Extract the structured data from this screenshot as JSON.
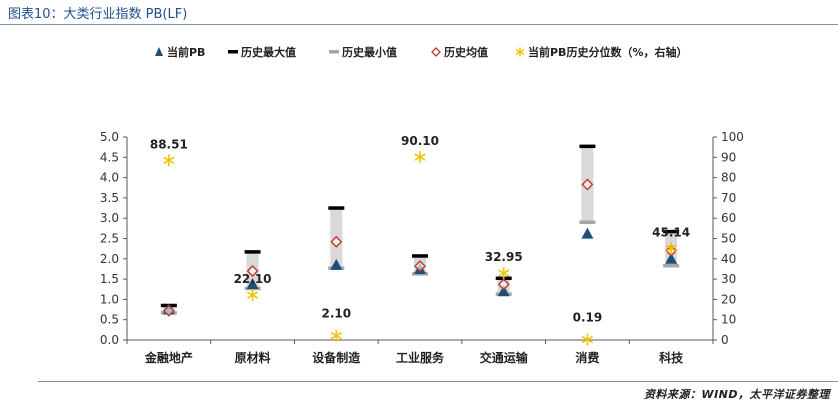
{
  "header": {
    "title": "图表10：大类行业指数 PB(LF)"
  },
  "footer": {
    "source": "资料来源：WIND，太平洋证券整理"
  },
  "chart_data": {
    "type": "range-marker",
    "categories": [
      "金融地产",
      "原材料",
      "设备制造",
      "工业服务",
      "交通运输",
      "消费",
      "科技"
    ],
    "legend": [
      "当前PB",
      "历史最大值",
      "历史最小值",
      "历史均值",
      "当前PB历史分位数（%，右轴）"
    ],
    "legend_position": "top",
    "series": [
      {
        "name": "当前PB",
        "axis": "left",
        "marker": "triangle",
        "color": "#1f4e79",
        "values": [
          0.75,
          1.38,
          1.85,
          1.75,
          1.2,
          2.62,
          2.0
        ]
      },
      {
        "name": "历史最大值",
        "axis": "left",
        "marker": "dash",
        "color": "#000000",
        "values": [
          0.85,
          2.17,
          3.25,
          2.07,
          1.52,
          4.77,
          2.67
        ]
      },
      {
        "name": "历史最小值",
        "axis": "left",
        "marker": "dash",
        "color": "#a6a6a6",
        "values": [
          0.67,
          1.27,
          1.77,
          1.63,
          1.13,
          2.9,
          1.83
        ]
      },
      {
        "name": "历史均值",
        "axis": "left",
        "marker": "diamond",
        "color": "#c0392b",
        "values": [
          0.72,
          1.7,
          2.42,
          1.82,
          1.37,
          3.83,
          2.2
        ]
      },
      {
        "name": "当前PB历史分位数（%，右轴）",
        "axis": "right",
        "marker": "asterisk",
        "color": "#f2c200",
        "values": [
          88.51,
          22.1,
          2.1,
          90.1,
          32.95,
          0.19,
          45.14
        ]
      }
    ],
    "data_labels": [
      "88.51",
      "22.10",
      "2.10",
      "90.10",
      "32.95",
      "0.19",
      "45.14"
    ],
    "y_left": {
      "min": 0,
      "max": 5,
      "step": 0.5,
      "ticks": [
        "0.0",
        "0.5",
        "1.0",
        "1.5",
        "2.0",
        "2.5",
        "3.0",
        "3.5",
        "4.0",
        "4.5",
        "5.0"
      ]
    },
    "y_right": {
      "min": 0,
      "max": 100,
      "step": 10,
      "ticks": [
        "0",
        "10",
        "20",
        "30",
        "40",
        "50",
        "60",
        "70",
        "80",
        "90",
        "100"
      ]
    },
    "grid": false
  }
}
